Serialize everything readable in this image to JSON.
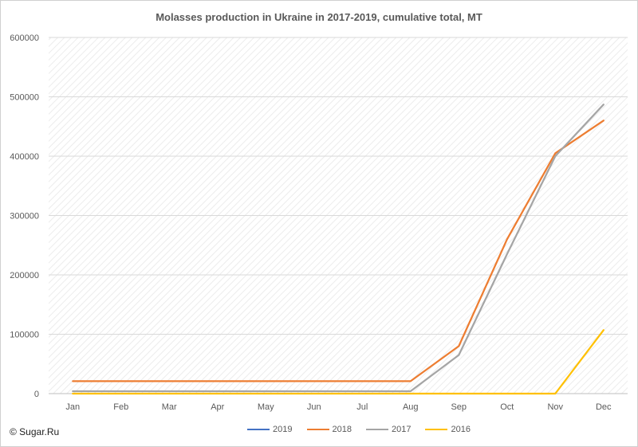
{
  "page": {
    "credit": "© Sugar.Ru"
  },
  "chart_data": {
    "type": "line",
    "title": "Molasses production in Ukraine in 2017-2019, cumulative total, MT",
    "xlabel": "",
    "ylabel": "",
    "categories": [
      "Jan",
      "Feb",
      "Mar",
      "Apr",
      "May",
      "Jun",
      "Jul",
      "Aug",
      "Sep",
      "Oct",
      "Nov",
      "Dec"
    ],
    "ylim": [
      0,
      600000
    ],
    "yticks": [
      0,
      100000,
      200000,
      300000,
      400000,
      500000,
      600000
    ],
    "ytick_labels": [
      "0",
      "100000",
      "200000",
      "300000",
      "400000",
      "500000",
      "600000"
    ],
    "grid": true,
    "legend_position": "bottom",
    "series": [
      {
        "name": "2019",
        "color": "#4472c4",
        "values": [
          null,
          null,
          null,
          null,
          null,
          null,
          null,
          null,
          null,
          null,
          null,
          null
        ]
      },
      {
        "name": "2018",
        "color": "#ed7d31",
        "values": [
          21000,
          21000,
          21000,
          21000,
          21000,
          21000,
          21000,
          21000,
          80000,
          260000,
          405000,
          460000
        ]
      },
      {
        "name": "2017",
        "color": "#a5a5a5",
        "values": [
          4000,
          4000,
          4000,
          4000,
          4000,
          4000,
          4000,
          4000,
          65000,
          235000,
          400000,
          487000
        ]
      },
      {
        "name": "2016",
        "color": "#ffc000",
        "values": [
          0,
          0,
          0,
          0,
          0,
          0,
          0,
          0,
          0,
          0,
          0,
          107000
        ]
      }
    ]
  }
}
